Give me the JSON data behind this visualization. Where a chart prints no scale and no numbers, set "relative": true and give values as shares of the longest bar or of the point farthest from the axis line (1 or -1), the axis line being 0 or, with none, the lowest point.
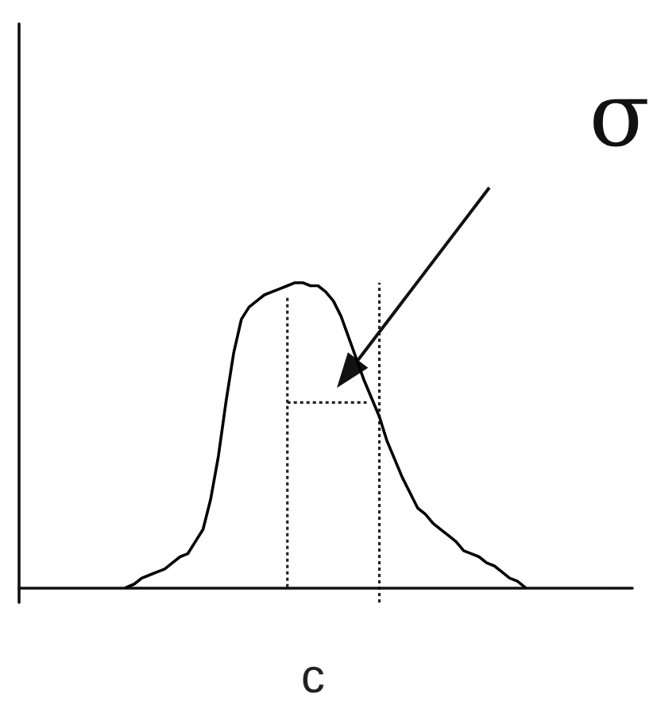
{
  "chart_data": {
    "type": "line",
    "relative": true,
    "xlabel": "c",
    "marker": "none",
    "line_style": "solid",
    "annotations": [
      "σ"
    ],
    "categories": [
      null,
      null,
      null,
      null,
      null,
      null,
      null,
      null,
      null,
      null,
      null,
      null,
      null,
      null,
      null,
      null,
      null,
      null,
      null,
      null,
      null,
      null,
      null,
      null,
      null,
      null,
      null,
      null,
      null,
      null,
      null,
      null,
      null,
      null,
      null,
      null,
      null,
      null,
      null,
      null,
      null,
      null,
      null,
      null,
      null,
      null,
      null,
      null,
      null,
      null,
      null,
      null,
      null,
      null,
      null,
      null,
      null,
      null,
      null,
      null,
      null,
      null,
      null,
      null,
      null,
      null,
      null,
      null,
      null,
      null,
      null,
      null,
      null,
      null,
      null,
      null,
      null,
      null,
      null,
      null,
      null
    ],
    "series": [
      {
        "color": "#000000",
        "values": [
          null,
          null,
          null,
          null,
          null,
          null,
          null,
          null,
          null,
          null,
          null,
          null,
          null,
          null,
          0,
          0.01,
          0.03,
          0.04,
          0.05,
          0.06,
          0.08,
          0.1,
          0.11,
          0.15,
          0.19,
          0.29,
          0.43,
          0.61,
          0.77,
          0.88,
          0.92,
          0.94,
          0.96,
          0.97,
          0.98,
          0.99,
          1,
          1,
          0.99,
          0.99,
          0.97,
          0.94,
          0.89,
          0.82,
          0.75,
          0.68,
          0.62,
          0.56,
          0.48,
          0.42,
          0.36,
          0.31,
          0.26,
          0.24,
          0.21,
          0.19,
          0.17,
          0.15,
          0.12,
          0.11,
          0.1,
          0.08,
          0.07,
          0.05,
          0.03,
          0.02,
          0,
          null,
          null,
          null,
          null,
          null,
          null,
          null,
          null,
          null,
          null,
          null,
          null,
          null,
          null
        ]
      }
    ]
  }
}
